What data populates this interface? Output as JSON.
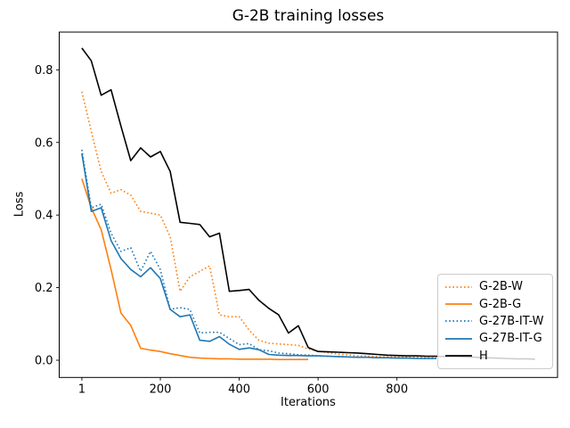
{
  "title": "G-2B training losses",
  "axes": {
    "xlabel": "Iterations",
    "ylabel": "Loss"
  },
  "chart_data": {
    "type": "line",
    "title": "G-2B training losses",
    "xlabel": "Iterations",
    "ylabel": "Loss",
    "x_ticks": [
      1,
      200,
      400,
      600,
      800
    ],
    "y_ticks": [
      0.0,
      0.2,
      0.4,
      0.6,
      0.8
    ],
    "xlim": [
      -56.4,
      1207.2
    ],
    "ylim": [
      -0.0474,
      0.904
    ],
    "grid": false,
    "legend_position": "lower right",
    "series": [
      {
        "name": "G-2B-W",
        "color": "#ff7f0e",
        "style": "dotted",
        "x": [
          1,
          25,
          50,
          75,
          100,
          125,
          150,
          175,
          200,
          225,
          250,
          275,
          300,
          325,
          350,
          375,
          400,
          425,
          450,
          475,
          500,
          525,
          550,
          575,
          600,
          625,
          650,
          675,
          700,
          725,
          750,
          775,
          800,
          825,
          850,
          875,
          900
        ],
        "y": [
          0.74,
          0.63,
          0.52,
          0.46,
          0.47,
          0.455,
          0.41,
          0.405,
          0.4,
          0.34,
          0.19,
          0.23,
          0.245,
          0.26,
          0.125,
          0.12,
          0.12,
          0.083,
          0.055,
          0.047,
          0.045,
          0.043,
          0.041,
          0.031,
          0.025,
          0.021,
          0.017,
          0.015,
          0.012,
          0.011,
          0.01,
          0.009,
          0.009,
          0.008,
          0.008,
          0.007,
          0.007
        ]
      },
      {
        "name": "G-2B-G",
        "color": "#ff7f0e",
        "style": "solid",
        "x": [
          1,
          25,
          50,
          75,
          100,
          125,
          150,
          175,
          200,
          225,
          250,
          275,
          300,
          325,
          350,
          375,
          400,
          425,
          450,
          475,
          500,
          525,
          550,
          575
        ],
        "y": [
          0.5,
          0.42,
          0.36,
          0.25,
          0.13,
          0.096,
          0.033,
          0.028,
          0.024,
          0.018,
          0.013,
          0.008,
          0.006,
          0.005,
          0.004,
          0.004,
          0.003,
          0.003,
          0.003,
          0.003,
          0.002,
          0.002,
          0.002,
          0.002
        ]
      },
      {
        "name": "G-27B-IT-W",
        "color": "#1f77b4",
        "style": "dotted",
        "x": [
          1,
          25,
          50,
          75,
          100,
          125,
          150,
          175,
          200,
          225,
          250,
          275,
          300,
          325,
          350,
          375,
          400,
          425,
          450,
          475,
          500,
          525,
          550,
          575,
          600,
          625,
          650,
          675,
          700,
          725,
          750,
          775,
          800,
          825,
          850,
          875,
          900
        ],
        "y": [
          0.58,
          0.42,
          0.43,
          0.35,
          0.3,
          0.31,
          0.245,
          0.3,
          0.25,
          0.14,
          0.145,
          0.14,
          0.075,
          0.077,
          0.077,
          0.06,
          0.043,
          0.046,
          0.029,
          0.026,
          0.02,
          0.018,
          0.015,
          0.014,
          0.012,
          0.011,
          0.01,
          0.009,
          0.008,
          0.008,
          0.007,
          0.007,
          0.006,
          0.006,
          0.006,
          0.005,
          0.005
        ]
      },
      {
        "name": "G-27B-IT-G",
        "color": "#1f77b4",
        "style": "solid",
        "x": [
          1,
          25,
          50,
          75,
          100,
          125,
          150,
          175,
          200,
          225,
          250,
          275,
          300,
          325,
          350,
          375,
          400,
          425,
          450,
          475,
          500,
          525,
          550,
          575,
          600,
          625,
          650,
          675,
          700,
          725,
          750,
          775,
          800,
          825,
          850,
          875,
          900
        ],
        "y": [
          0.57,
          0.41,
          0.42,
          0.33,
          0.28,
          0.25,
          0.23,
          0.255,
          0.225,
          0.14,
          0.12,
          0.125,
          0.055,
          0.052,
          0.065,
          0.044,
          0.03,
          0.034,
          0.029,
          0.016,
          0.014,
          0.013,
          0.013,
          0.012,
          0.012,
          0.011,
          0.01,
          0.009,
          0.008,
          0.008,
          0.007,
          0.007,
          0.006,
          0.006,
          0.005,
          0.005,
          0.005
        ]
      },
      {
        "name": "H",
        "color": "#000000",
        "style": "solid",
        "x": [
          1,
          25,
          50,
          75,
          100,
          125,
          150,
          175,
          200,
          225,
          250,
          275,
          300,
          325,
          350,
          375,
          400,
          425,
          450,
          475,
          500,
          525,
          550,
          575,
          600,
          625,
          650,
          675,
          700,
          725,
          750,
          775,
          800,
          825,
          850,
          875,
          900,
          925,
          950,
          975,
          1000,
          1025,
          1050,
          1075,
          1100,
          1125,
          1150
        ],
        "y": [
          0.86,
          0.825,
          0.73,
          0.745,
          0.645,
          0.55,
          0.585,
          0.56,
          0.575,
          0.52,
          0.38,
          0.377,
          0.374,
          0.34,
          0.35,
          0.19,
          0.192,
          0.195,
          0.165,
          0.143,
          0.125,
          0.075,
          0.095,
          0.035,
          0.024,
          0.023,
          0.022,
          0.021,
          0.02,
          0.018,
          0.016,
          0.014,
          0.013,
          0.012,
          0.012,
          0.011,
          0.011,
          0.01,
          0.01,
          0.009,
          0.008,
          0.007,
          0.006,
          0.005,
          0.004,
          0.004,
          0.003
        ]
      }
    ]
  },
  "legend": {
    "items": [
      {
        "label": "G-2B-W",
        "color": "#ff7f0e",
        "style": "dotted"
      },
      {
        "label": "G-2B-G",
        "color": "#ff7f0e",
        "style": "solid"
      },
      {
        "label": "G-27B-IT-W",
        "color": "#1f77b4",
        "style": "dotted"
      },
      {
        "label": "G-27B-IT-G",
        "color": "#1f77b4",
        "style": "solid"
      },
      {
        "label": "H",
        "color": "#000000",
        "style": "solid"
      }
    ]
  }
}
